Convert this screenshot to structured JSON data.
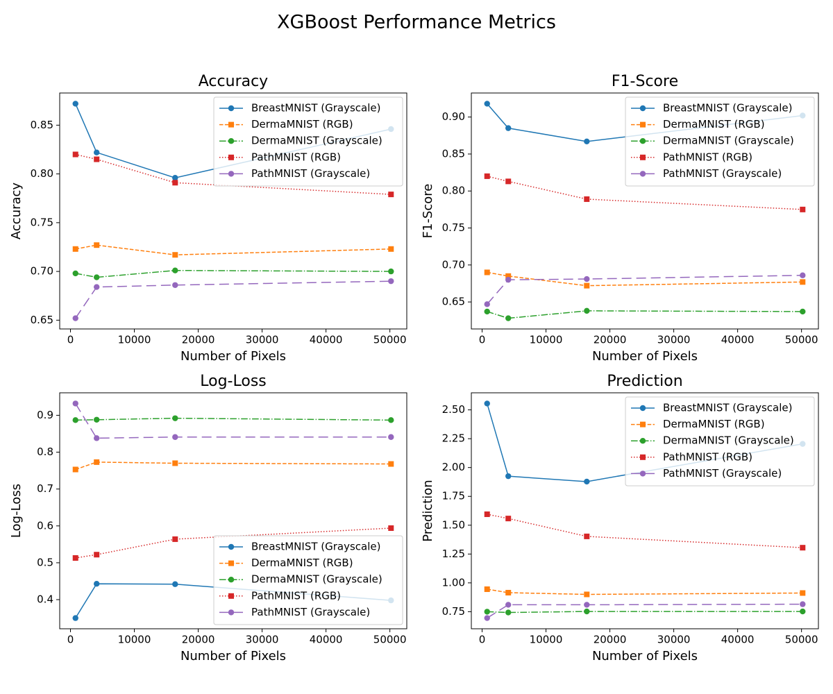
{
  "title": "XGBoost Performance Metrics",
  "chart_data": [
    {
      "type": "line",
      "title": "Accuracy",
      "x_label": "Number of Pixels",
      "y_label": "Accuracy",
      "x": [
        784,
        4096,
        16384,
        50176
      ],
      "xlim": [
        -1686,
        52646
      ],
      "xticks": [
        0,
        10000,
        20000,
        30000,
        40000,
        50000
      ],
      "ylim": [
        0.641,
        0.883
      ],
      "yticks": [
        0.65,
        {
          "value": 0.7,
          "label": "0.70"
        },
        0.75,
        {
          "value": 0.8,
          "label": "0.80"
        },
        0.85
      ],
      "legend": "upper right",
      "series": [
        {
          "name": "BreastMNIST (Grayscale)",
          "color": "#1f77b4",
          "linestyle": "solid",
          "marker": "circle",
          "values": [
            0.872,
            0.822,
            0.796,
            0.846
          ]
        },
        {
          "name": "DermaMNIST (RGB)",
          "color": "#ff7f0e",
          "linestyle": "dashed",
          "marker": "square",
          "values": [
            0.723,
            0.727,
            0.717,
            0.723
          ]
        },
        {
          "name": "DermaMNIST (Grayscale)",
          "color": "#2ca02c",
          "linestyle": "dashdot",
          "marker": "circle",
          "values": [
            0.698,
            0.694,
            0.701,
            0.7
          ]
        },
        {
          "name": "PathMNIST (RGB)",
          "color": "#d62728",
          "linestyle": "dotted",
          "marker": "square",
          "values": [
            0.82,
            0.815,
            0.791,
            0.779
          ]
        },
        {
          "name": "PathMNIST (Grayscale)",
          "color": "#9467bd",
          "linestyle": "longdash",
          "marker": "circle",
          "values": [
            0.652,
            0.684,
            0.686,
            0.69
          ]
        }
      ]
    },
    {
      "type": "line",
      "title": "F1-Score",
      "x_label": "Number of Pixels",
      "y_label": "F1-Score",
      "x": [
        784,
        4096,
        16384,
        50176
      ],
      "xlim": [
        -1686,
        52646
      ],
      "xticks": [
        0,
        10000,
        20000,
        30000,
        40000,
        50000
      ],
      "ylim": [
        0.6135,
        0.9325
      ],
      "yticks": [
        0.65,
        {
          "value": 0.7,
          "label": "0.70"
        },
        0.75,
        {
          "value": 0.8,
          "label": "0.80"
        },
        0.85,
        {
          "value": 0.9,
          "label": "0.90"
        }
      ],
      "legend": "upper right",
      "series": [
        {
          "name": "BreastMNIST (Grayscale)",
          "color": "#1f77b4",
          "linestyle": "solid",
          "marker": "circle",
          "values": [
            0.918,
            0.885,
            0.867,
            0.902
          ]
        },
        {
          "name": "DermaMNIST (RGB)",
          "color": "#ff7f0e",
          "linestyle": "dashed",
          "marker": "square",
          "values": [
            0.69,
            0.685,
            0.672,
            0.677
          ]
        },
        {
          "name": "DermaMNIST (Grayscale)",
          "color": "#2ca02c",
          "linestyle": "dashdot",
          "marker": "circle",
          "values": [
            0.637,
            0.628,
            0.638,
            0.637
          ]
        },
        {
          "name": "PathMNIST (RGB)",
          "color": "#d62728",
          "linestyle": "dotted",
          "marker": "square",
          "values": [
            0.82,
            0.813,
            0.789,
            0.775
          ]
        },
        {
          "name": "PathMNIST (Grayscale)",
          "color": "#9467bd",
          "linestyle": "longdash",
          "marker": "circle",
          "values": [
            0.647,
            0.68,
            0.681,
            0.686
          ]
        }
      ]
    },
    {
      "type": "line",
      "title": "Log-Loss",
      "x_label": "Number of Pixels",
      "y_label": "Log-Loss",
      "x": [
        784,
        4096,
        16384,
        50176
      ],
      "xlim": [
        -1686,
        52646
      ],
      "xticks": [
        0,
        10000,
        20000,
        30000,
        40000,
        50000
      ],
      "ylim": [
        0.321,
        0.961
      ],
      "yticks": [
        0.4,
        0.5,
        0.6,
        0.7,
        0.8,
        0.9
      ],
      "legend": "lower right",
      "series": [
        {
          "name": "BreastMNIST (Grayscale)",
          "color": "#1f77b4",
          "linestyle": "solid",
          "marker": "circle",
          "values": [
            0.35,
            0.443,
            0.442,
            0.398
          ]
        },
        {
          "name": "DermaMNIST (RGB)",
          "color": "#ff7f0e",
          "linestyle": "dashed",
          "marker": "square",
          "values": [
            0.753,
            0.773,
            0.77,
            0.768
          ]
        },
        {
          "name": "DermaMNIST (Grayscale)",
          "color": "#2ca02c",
          "linestyle": "dashdot",
          "marker": "circle",
          "values": [
            0.887,
            0.888,
            0.892,
            0.887
          ]
        },
        {
          "name": "PathMNIST (RGB)",
          "color": "#d62728",
          "linestyle": "dotted",
          "marker": "square",
          "values": [
            0.513,
            0.522,
            0.564,
            0.594
          ]
        },
        {
          "name": "PathMNIST (Grayscale)",
          "color": "#9467bd",
          "linestyle": "longdash",
          "marker": "circle",
          "values": [
            0.932,
            0.838,
            0.841,
            0.841
          ]
        }
      ]
    },
    {
      "type": "line",
      "title": "Prediction",
      "x_label": "Number of Pixels",
      "y_label": "Prediction",
      "x": [
        784,
        4096,
        16384,
        50176
      ],
      "xlim": [
        -1686,
        52646
      ],
      "xticks": [
        0,
        10000,
        20000,
        30000,
        40000,
        50000
      ],
      "ylim": [
        0.602,
        2.648
      ],
      "yticks": [
        0.75,
        {
          "value": 1.0,
          "label": "1.00"
        },
        1.25,
        {
          "value": 1.5,
          "label": "1.50"
        },
        1.75,
        {
          "value": 2.0,
          "label": "2.00"
        },
        2.25,
        {
          "value": 2.5,
          "label": "2.50"
        }
      ],
      "legend": "upper right",
      "series": [
        {
          "name": "BreastMNIST (Grayscale)",
          "color": "#1f77b4",
          "linestyle": "solid",
          "marker": "circle",
          "values": [
            2.555,
            1.925,
            1.878,
            2.205
          ]
        },
        {
          "name": "DermaMNIST (RGB)",
          "color": "#ff7f0e",
          "linestyle": "dashed",
          "marker": "square",
          "values": [
            0.945,
            0.915,
            0.9,
            0.912
          ]
        },
        {
          "name": "DermaMNIST (Grayscale)",
          "color": "#2ca02c",
          "linestyle": "dashdot",
          "marker": "circle",
          "values": [
            0.75,
            0.743,
            0.752,
            0.752
          ]
        },
        {
          "name": "PathMNIST (RGB)",
          "color": "#d62728",
          "linestyle": "dotted",
          "marker": "square",
          "values": [
            1.595,
            1.558,
            1.403,
            1.305
          ]
        },
        {
          "name": "PathMNIST (Grayscale)",
          "color": "#9467bd",
          "linestyle": "longdash",
          "marker": "circle",
          "values": [
            0.695,
            0.81,
            0.81,
            0.815
          ]
        }
      ]
    }
  ]
}
